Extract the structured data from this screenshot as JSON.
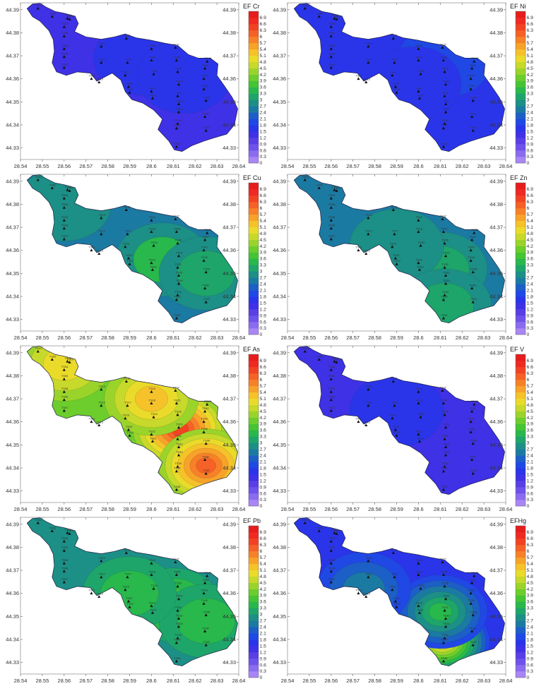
{
  "colorbar": {
    "ticks": [
      0,
      0.3,
      0.6,
      0.9,
      1.2,
      1.5,
      1.8,
      2.1,
      2.4,
      2.7,
      3,
      3.3,
      3.6,
      3.9,
      4.2,
      4.5,
      4.8,
      5.1,
      5.4,
      5.7,
      6,
      6.3,
      6.6,
      6.9
    ],
    "colors": [
      "#a986f5",
      "#8b6cf0",
      "#6f52ec",
      "#5a3fe6",
      "#3f31e6",
      "#2a35ea",
      "#1f48e4",
      "#1c5fc6",
      "#1b7aa2",
      "#1c8f86",
      "#1ea56a",
      "#28b84c",
      "#45c434",
      "#6ccd2c",
      "#9ad42a",
      "#c7d92a",
      "#eadb2a",
      "#f5c22a",
      "#f7a229",
      "#f78128",
      "#f56126",
      "#f24224",
      "#ee2a22",
      "#e61d1d"
    ]
  },
  "stations": [
    {
      "id": "TS01",
      "x": 28.548,
      "y": 44.3905
    },
    {
      "id": "TS02",
      "x": 28.5545,
      "y": 44.387
    },
    {
      "id": "TS03",
      "x": 28.5615,
      "y": 44.3862
    },
    {
      "id": "TS04",
      "x": 28.56,
      "y": 44.3825
    },
    {
      "id": "TS05",
      "x": 28.56,
      "y": 44.3785
    },
    {
      "id": "TS06",
      "x": 28.56,
      "y": 44.3695
    },
    {
      "id": "TS07",
      "x": 28.56,
      "y": 44.3648
    },
    {
      "id": "TS08",
      "x": 28.56,
      "y": 44.373
    },
    {
      "id": "TS10",
      "x": 28.5625,
      "y": 44.3858
    },
    {
      "id": "TS11",
      "x": 28.5725,
      "y": 44.36
    },
    {
      "id": "TS12",
      "x": 28.577,
      "y": 44.367
    },
    {
      "id": "TS13",
      "x": 28.576,
      "y": 44.3585
    },
    {
      "id": "TS14",
      "x": 28.577,
      "y": 44.374
    },
    {
      "id": "TS15",
      "x": 28.5885,
      "y": 44.3775
    },
    {
      "id": "TS16",
      "x": 28.588,
      "y": 44.3615
    },
    {
      "id": "TS17",
      "x": 28.589,
      "y": 44.367
    },
    {
      "id": "TS18",
      "x": 28.6,
      "y": 44.368
    },
    {
      "id": "TS19",
      "x": 28.6,
      "y": 44.373
    },
    {
      "id": "TS20",
      "x": 28.5895,
      "y": 44.3565
    },
    {
      "id": "TS21",
      "x": 28.59,
      "y": 44.354
    },
    {
      "id": "TS22",
      "x": 28.6,
      "y": 44.3545
    },
    {
      "id": "TS23",
      "x": 28.6005,
      "y": 44.3515
    },
    {
      "id": "TS24",
      "x": 28.601,
      "y": 44.362
    },
    {
      "id": "TS25",
      "x": 28.6115,
      "y": 44.368
    },
    {
      "id": "TS26",
      "x": 28.612,
      "y": 44.363
    },
    {
      "id": "TS27",
      "x": 28.611,
      "y": 44.3735
    },
    {
      "id": "TS29",
      "x": 28.6125,
      "y": 44.3575
    },
    {
      "id": "TS31",
      "x": 28.612,
      "y": 44.3525
    },
    {
      "id": "TS32",
      "x": 28.6125,
      "y": 44.349
    },
    {
      "id": "TS33",
      "x": 28.6125,
      "y": 44.3455
    },
    {
      "id": "TS34",
      "x": 28.612,
      "y": 44.3405
    },
    {
      "id": "TS35",
      "x": 28.6115,
      "y": 44.3385
    },
    {
      "id": "TS36",
      "x": 28.6115,
      "y": 44.3305
    },
    {
      "id": "TS37",
      "x": 28.625,
      "y": 44.3375
    },
    {
      "id": "TS38",
      "x": 28.6245,
      "y": 44.3435
    },
    {
      "id": "TS39",
      "x": 28.625,
      "y": 44.3505
    },
    {
      "id": "TS40",
      "x": 28.624,
      "y": 44.3555
    },
    {
      "id": "TS41",
      "x": 28.624,
      "y": 44.36
    },
    {
      "id": "TS42",
      "x": 28.6245,
      "y": 44.3645
    },
    {
      "id": "TS43",
      "x": 28.6255,
      "y": 44.3675
    }
  ],
  "chart_data": [
    {
      "type": "heatmap",
      "title": "EF Cr",
      "xlim": [
        28.54,
        28.64
      ],
      "ylim": [
        44.325,
        44.393
      ],
      "xticks": [
        28.54,
        28.55,
        28.56,
        28.57,
        28.58,
        28.59,
        28.6,
        28.61,
        28.62,
        28.63,
        28.64
      ],
      "yticks": [
        44.33,
        44.34,
        44.35,
        44.36,
        44.37,
        44.38,
        44.39
      ],
      "base": 1.45,
      "hotspots": [
        {
          "x": 28.595,
          "y": 44.369,
          "value": 1.6
        },
        {
          "x": 28.615,
          "y": 44.361,
          "value": 1.55
        }
      ]
    },
    {
      "type": "heatmap",
      "title": "EF Ni",
      "xlim": [
        28.54,
        28.64
      ],
      "ylim": [
        44.325,
        44.393
      ],
      "xticks": [
        28.54,
        28.55,
        28.56,
        28.57,
        28.58,
        28.59,
        28.6,
        28.61,
        28.62,
        28.63,
        28.64
      ],
      "yticks": [
        44.33,
        44.34,
        44.35,
        44.36,
        44.37,
        44.38,
        44.39
      ],
      "base": 1.5,
      "hotspots": [
        {
          "x": 28.612,
          "y": 44.368,
          "value": 1.8
        },
        {
          "x": 28.598,
          "y": 44.358,
          "value": 1.7
        }
      ]
    },
    {
      "type": "heatmap",
      "title": "EF Cu",
      "xlim": [
        28.54,
        28.64
      ],
      "ylim": [
        44.325,
        44.393
      ],
      "xticks": [
        28.54,
        28.55,
        28.56,
        28.57,
        28.58,
        28.59,
        28.6,
        28.61,
        28.62,
        28.63,
        28.64
      ],
      "yticks": [
        44.33,
        44.34,
        44.35,
        44.36,
        44.37,
        44.38,
        44.39
      ],
      "base": 2.6,
      "hotspots": [
        {
          "x": 28.605,
          "y": 44.356,
          "value": 3.3
        },
        {
          "x": 28.625,
          "y": 44.35,
          "value": 3.1
        },
        {
          "x": 28.56,
          "y": 44.38,
          "value": 2.9
        }
      ]
    },
    {
      "type": "heatmap",
      "title": "EF Zn",
      "xlim": [
        28.54,
        28.64
      ],
      "ylim": [
        44.325,
        44.393
      ],
      "xticks": [
        28.54,
        28.55,
        28.56,
        28.57,
        28.58,
        28.59,
        28.6,
        28.61,
        28.62,
        28.63,
        28.64
      ],
      "yticks": [
        44.33,
        44.34,
        44.35,
        44.36,
        44.37,
        44.38,
        44.39
      ],
      "base": 2.4,
      "hotspots": [
        {
          "x": 28.61,
          "y": 44.352,
          "value": 3.0
        },
        {
          "x": 28.59,
          "y": 44.362,
          "value": 2.8
        },
        {
          "x": 28.612,
          "y": 44.336,
          "value": 3.1
        }
      ]
    },
    {
      "type": "heatmap",
      "title": "EF As",
      "xlim": [
        28.54,
        28.64
      ],
      "ylim": [
        44.325,
        44.393
      ],
      "xticks": [
        28.54,
        28.55,
        28.56,
        28.57,
        28.58,
        28.59,
        28.6,
        28.61,
        28.62,
        28.63,
        28.64
      ],
      "yticks": [
        44.33,
        44.34,
        44.35,
        44.36,
        44.37,
        44.38,
        44.39
      ],
      "base": 4.0,
      "hotspots": [
        {
          "x": 28.613,
          "y": 44.357,
          "value": 6.4
        },
        {
          "x": 28.625,
          "y": 44.341,
          "value": 6.1
        },
        {
          "x": 28.6,
          "y": 44.37,
          "value": 5.2
        },
        {
          "x": 28.56,
          "y": 44.385,
          "value": 5.0
        }
      ]
    },
    {
      "type": "heatmap",
      "title": "EF V",
      "xlim": [
        28.54,
        28.64
      ],
      "ylim": [
        44.325,
        44.393
      ],
      "xticks": [
        28.54,
        28.55,
        28.56,
        28.57,
        28.58,
        28.59,
        28.6,
        28.61,
        28.62,
        28.63,
        28.64
      ],
      "yticks": [
        44.33,
        44.34,
        44.35,
        44.36,
        44.37,
        44.38,
        44.39
      ],
      "base": 1.4,
      "hotspots": [
        {
          "x": 28.59,
          "y": 44.365,
          "value": 1.55
        }
      ]
    },
    {
      "type": "heatmap",
      "title": "EF Pb",
      "xlim": [
        28.54,
        28.64
      ],
      "ylim": [
        44.325,
        44.393
      ],
      "xticks": [
        28.54,
        28.55,
        28.56,
        28.57,
        28.58,
        28.59,
        28.6,
        28.61,
        28.62,
        28.63,
        28.64
      ],
      "yticks": [
        44.33,
        44.34,
        44.35,
        44.36,
        44.37,
        44.38,
        44.39
      ],
      "base": 2.8,
      "hotspots": [
        {
          "x": 28.61,
          "y": 44.355,
          "value": 3.7
        },
        {
          "x": 28.625,
          "y": 44.348,
          "value": 3.5
        },
        {
          "x": 28.59,
          "y": 44.36,
          "value": 3.3
        }
      ]
    },
    {
      "type": "heatmap",
      "title": "EFHg",
      "xlim": [
        28.54,
        28.64
      ],
      "ylim": [
        44.325,
        44.393
      ],
      "xticks": [
        28.54,
        28.55,
        28.56,
        28.57,
        28.58,
        28.59,
        28.6,
        28.61,
        28.62,
        28.63,
        28.64
      ],
      "yticks": [
        44.33,
        44.34,
        44.35,
        44.36,
        44.37,
        44.38,
        44.39
      ],
      "base": 1.6,
      "hotspots": [
        {
          "x": 28.611,
          "y": 44.339,
          "value": 5.2
        },
        {
          "x": 28.61,
          "y": 44.352,
          "value": 3.3
        },
        {
          "x": 28.575,
          "y": 44.362,
          "value": 2.4
        }
      ]
    }
  ]
}
